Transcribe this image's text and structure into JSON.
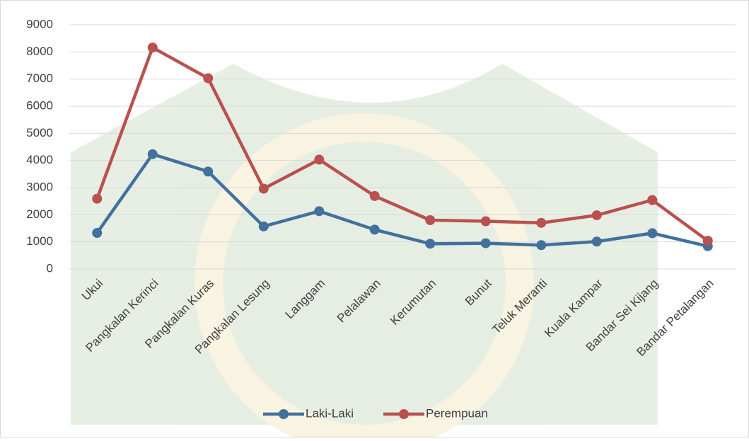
{
  "chart_data": {
    "type": "line",
    "categories": [
      "Ukui",
      "Pangkalan Kerinci",
      "Pangkalan Kuras",
      "Pangkalan Lesung",
      "Langgam",
      "Pelalawan",
      "Kerumutan",
      "Bunut",
      "Teluk Meranti",
      "Kuala Kampar",
      "Bandar Sei Kijang",
      "Bandar Petalangan"
    ],
    "series": [
      {
        "name": "Laki-Laki",
        "color": "#41719c",
        "values": [
          1330,
          4230,
          3590,
          1570,
          2130,
          1450,
          930,
          950,
          880,
          1010,
          1320,
          840
        ]
      },
      {
        "name": "Perempuan",
        "color": "#b9514e",
        "values": [
          2590,
          8160,
          7030,
          2960,
          4030,
          2690,
          1800,
          1760,
          1700,
          1980,
          2540,
          1040
        ]
      }
    ],
    "ylim": [
      0,
      9000
    ],
    "yticks": [
      0,
      1000,
      2000,
      3000,
      4000,
      5000,
      6000,
      7000,
      8000,
      9000
    ],
    "grid": true,
    "legend": "bottom"
  }
}
